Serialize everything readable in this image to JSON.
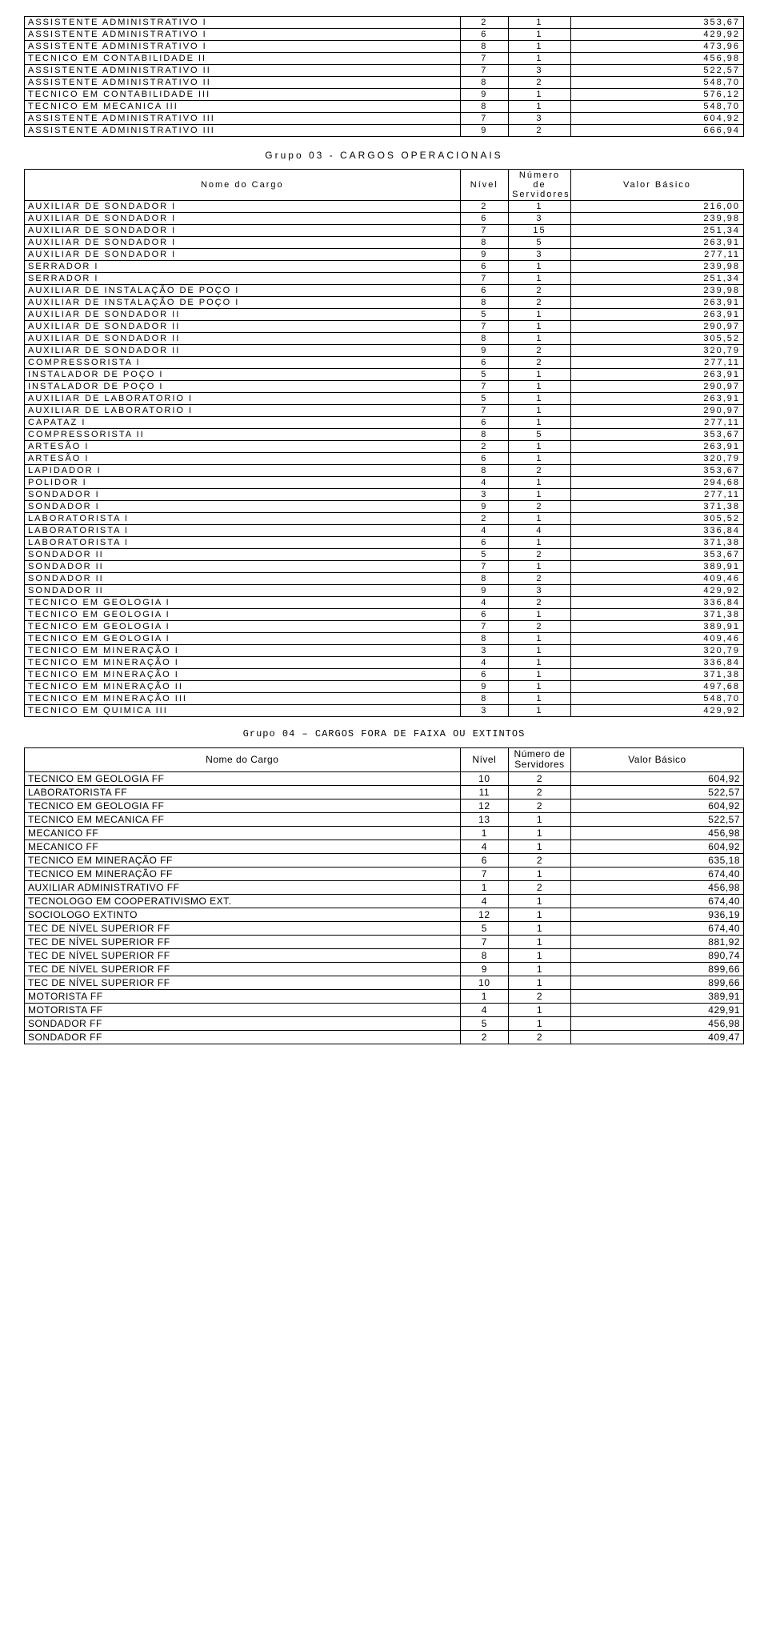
{
  "table1": {
    "rows": [
      [
        "ASSISTENTE ADMINISTRATIVO I",
        "2",
        "1",
        "353,67"
      ],
      [
        "ASSISTENTE ADMINISTRATIVO I",
        "6",
        "1",
        "429,92"
      ],
      [
        "ASSISTENTE ADMINISTRATIVO I",
        "8",
        "1",
        "473,96"
      ],
      [
        "TECNICO EM CONTABILIDADE II",
        "7",
        "1",
        "456,98"
      ],
      [
        "ASSISTENTE ADMINISTRATIVO II",
        "7",
        "3",
        "522,57"
      ],
      [
        "ASSISTENTE ADMINISTRATIVO II",
        "8",
        "2",
        "548,70"
      ],
      [
        "TECNICO EM CONTABILIDADE III",
        "9",
        "1",
        "576,12"
      ],
      [
        "TECNICO EM MECANICA III",
        "8",
        "1",
        "548,70"
      ],
      [
        "ASSISTENTE ADMINISTRATIVO III",
        "7",
        "3",
        "604,92"
      ],
      [
        "ASSISTENTE ADMINISTRATIVO III",
        "9",
        "2",
        "666,94"
      ]
    ]
  },
  "group3_title": "Grupo 03 - CARGOS OPERACIONAIS",
  "table3": {
    "headers": {
      "name": "Nome do Cargo",
      "nivel": "Nível",
      "num": "Número de Servidores",
      "val": "Valor Básico"
    },
    "rows": [
      [
        "AUXILIAR DE SONDADOR I",
        "2",
        "1",
        "216,00"
      ],
      [
        "AUXILIAR DE SONDADOR I",
        "6",
        "3",
        "239,98"
      ],
      [
        "AUXILIAR DE SONDADOR I",
        "7",
        "15",
        "251,34"
      ],
      [
        "AUXILIAR DE SONDADOR I",
        "8",
        "5",
        "263,91"
      ],
      [
        "AUXILIAR DE SONDADOR I",
        "9",
        "3",
        "277,11"
      ],
      [
        "SERRADOR I",
        "6",
        "1",
        "239,98"
      ],
      [
        "SERRADOR I",
        "7",
        "1",
        "251,34"
      ],
      [
        "AUXILIAR DE INSTALAÇÃO DE POÇO I",
        "6",
        "2",
        "239,98"
      ],
      [
        "AUXILIAR DE INSTALAÇÃO DE POÇO I",
        "8",
        "2",
        "263,91"
      ],
      [
        "AUXILIAR DE SONDADOR II",
        "5",
        "1",
        "263,91"
      ],
      [
        "AUXILIAR DE SONDADOR II",
        "7",
        "1",
        "290,97"
      ],
      [
        "AUXILIAR DE SONDADOR II",
        "8",
        "1",
        "305,52"
      ],
      [
        "AUXILIAR DE SONDADOR II",
        "9",
        "2",
        "320,79"
      ],
      [
        "COMPRESSORISTA I",
        "6",
        "2",
        "277,11"
      ],
      [
        "INSTALADOR DE POÇO I",
        "5",
        "1",
        "263,91"
      ],
      [
        "INSTALADOR DE POÇO I",
        "7",
        "1",
        "290,97"
      ],
      [
        "AUXILIAR DE LABORATORIO I",
        "5",
        "1",
        "263,91"
      ],
      [
        "AUXILIAR DE LABORATORIO I",
        "7",
        "1",
        "290,97"
      ],
      [
        "CAPATAZ I",
        "6",
        "1",
        "277,11"
      ],
      [
        "COMPRESSORISTA II",
        "8",
        "5",
        "353,67"
      ],
      [
        "ARTESÃO I",
        "2",
        "1",
        "263,91"
      ],
      [
        "ARTESÃO I",
        "6",
        "1",
        "320,79"
      ],
      [
        "LAPIDADOR I",
        "8",
        "2",
        "353,67"
      ],
      [
        "POLIDOR I",
        "4",
        "1",
        "294,68"
      ],
      [
        "SONDADOR I",
        "3",
        "1",
        "277,11"
      ],
      [
        "SONDADOR I",
        "9",
        "2",
        "371,38"
      ],
      [
        "LABORATORISTA I",
        "2",
        "1",
        "305,52"
      ],
      [
        "LABORATORISTA I",
        "4",
        "4",
        "336,84"
      ],
      [
        "LABORATORISTA I",
        "6",
        "1",
        "371,38"
      ],
      [
        "SONDADOR II",
        "5",
        "2",
        "353,67"
      ],
      [
        "SONDADOR II",
        "7",
        "1",
        "389,91"
      ],
      [
        "SONDADOR II",
        "8",
        "2",
        "409,46"
      ],
      [
        "SONDADOR II",
        "9",
        "3",
        "429,92"
      ],
      [
        "TECNICO EM GEOLOGIA I",
        "4",
        "2",
        "336,84"
      ],
      [
        "TECNICO EM GEOLOGIA I",
        "6",
        "1",
        "371,38"
      ],
      [
        "TECNICO EM GEOLOGIA I",
        "7",
        "2",
        "389,91"
      ],
      [
        "TECNICO EM GEOLOGIA I",
        "8",
        "1",
        "409,46"
      ],
      [
        "TECNICO EM MINERAÇÃO I",
        "3",
        "1",
        "320,79"
      ],
      [
        "TECNICO EM MINERAÇÃO I",
        "4",
        "1",
        "336,84"
      ],
      [
        "TECNICO EM MINERAÇÃO I",
        "6",
        "1",
        "371,38"
      ],
      [
        "TECNICO EM MINERAÇÃO II",
        "9",
        "1",
        "497,68"
      ],
      [
        "TECNICO EM MINERAÇÃO III",
        "8",
        "1",
        "548,70"
      ],
      [
        "TECNICO EM QUIMICA III",
        "3",
        "1",
        "429,92"
      ]
    ]
  },
  "group4_title": "Grupo 04 – CARGOS FORA DE FAIXA OU EXTINTOS",
  "table4": {
    "headers": {
      "name": "Nome do Cargo",
      "nivel": "Nível",
      "num": "Número de Servidores",
      "val": "Valor Básico"
    },
    "rows": [
      [
        "TECNICO EM GEOLOGIA FF",
        "10",
        "2",
        "604,92"
      ],
      [
        "LABORATORISTA FF",
        "11",
        "2",
        "522,57"
      ],
      [
        "TECNICO EM GEOLOGIA FF",
        "12",
        "2",
        "604,92"
      ],
      [
        "TECNICO EM MECANICA FF",
        "13",
        "1",
        "522,57"
      ],
      [
        "MECANICO FF",
        "1",
        "1",
        "456,98"
      ],
      [
        "MECANICO FF",
        "4",
        "1",
        "604,92"
      ],
      [
        "TECNICO EM MINERAÇÃO FF",
        "6",
        "2",
        "635,18"
      ],
      [
        "TECNICO EM MINERAÇÃO FF",
        "7",
        "1",
        "674,40"
      ],
      [
        "AUXILIAR ADMINISTRATIVO FF",
        "1",
        "2",
        "456,98"
      ],
      [
        "TECNOLOGO EM COOPERATIVISMO EXT.",
        "4",
        "1",
        "674,40"
      ],
      [
        "SOCIOLOGO EXTINTO",
        "12",
        "1",
        "936,19"
      ],
      [
        "TEC DE NÍVEL SUPERIOR FF",
        "5",
        "1",
        "674,40"
      ],
      [
        "TEC DE NÍVEL SUPERIOR FF",
        "7",
        "1",
        "881,92"
      ],
      [
        "TEC DE NÍVEL SUPERIOR FF",
        "8",
        "1",
        "890,74"
      ],
      [
        "TEC DE NÍVEL SUPERIOR FF",
        "9",
        "1",
        "899,66"
      ],
      [
        "TEC DE NÍVEL SUPERIOR FF",
        "10",
        "1",
        "899,66"
      ],
      [
        "MOTORISTA FF",
        "1",
        "2",
        "389,91"
      ],
      [
        "MOTORISTA FF",
        "4",
        "1",
        "429,91"
      ],
      [
        "SONDADOR FF",
        "5",
        "1",
        "456,98"
      ],
      [
        "SONDADOR FF",
        "2",
        "2",
        "409,47"
      ]
    ]
  }
}
